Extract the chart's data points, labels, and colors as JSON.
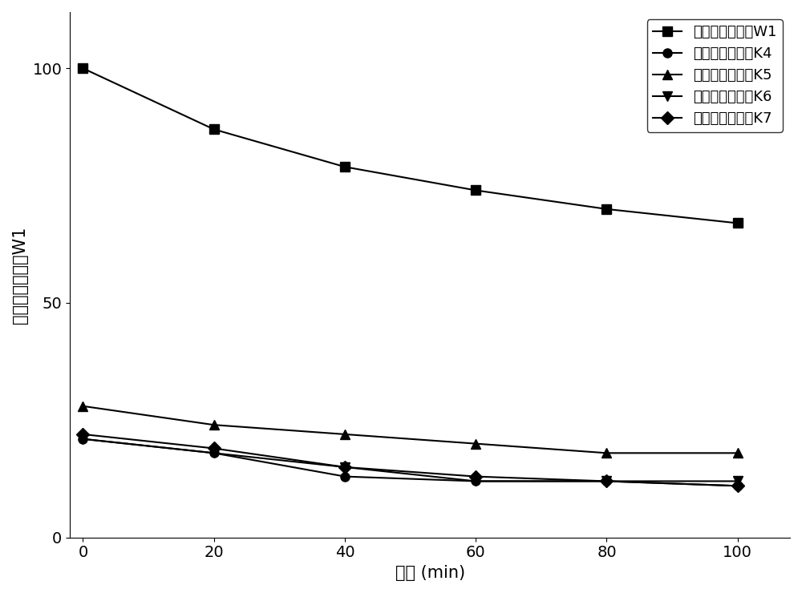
{
  "x": [
    0,
    20,
    40,
    60,
    80,
    100
  ],
  "series": [
    {
      "label": "食盐有效含量值W1",
      "values": [
        100,
        87,
        79,
        74,
        70,
        67
      ],
      "marker": "s",
      "markersize": 8,
      "color": "#000000"
    },
    {
      "label": "肉桂有效含量值K4",
      "values": [
        21,
        18,
        13,
        12,
        12,
        11
      ],
      "marker": "o",
      "markersize": 8,
      "color": "#000000"
    },
    {
      "label": "大蒜有效含量值K5",
      "values": [
        28,
        24,
        22,
        20,
        18,
        18
      ],
      "marker": "^",
      "markersize": 8,
      "color": "#000000"
    },
    {
      "label": "桂皮有效含量值K6",
      "values": [
        21,
        18,
        15,
        12,
        12,
        12
      ],
      "marker": "v",
      "markersize": 8,
      "color": "#000000"
    },
    {
      "label": "辣椒有效含量值K7",
      "values": [
        22,
        19,
        15,
        13,
        12,
        11
      ],
      "marker": "D",
      "markersize": 8,
      "color": "#000000"
    }
  ],
  "xlabel": "时间 (min)",
  "ylabel": "食盐有效含量值W1",
  "xlim": [
    -2,
    108
  ],
  "ylim": [
    0,
    112
  ],
  "xticks": [
    0,
    20,
    40,
    60,
    80,
    100
  ],
  "yticks": [
    0,
    50,
    100
  ],
  "legend_loc": "upper right",
  "label_font_size": 15,
  "tick_font_size": 14,
  "legend_font_size": 13,
  "line_width": 1.5,
  "background_color": "#ffffff"
}
